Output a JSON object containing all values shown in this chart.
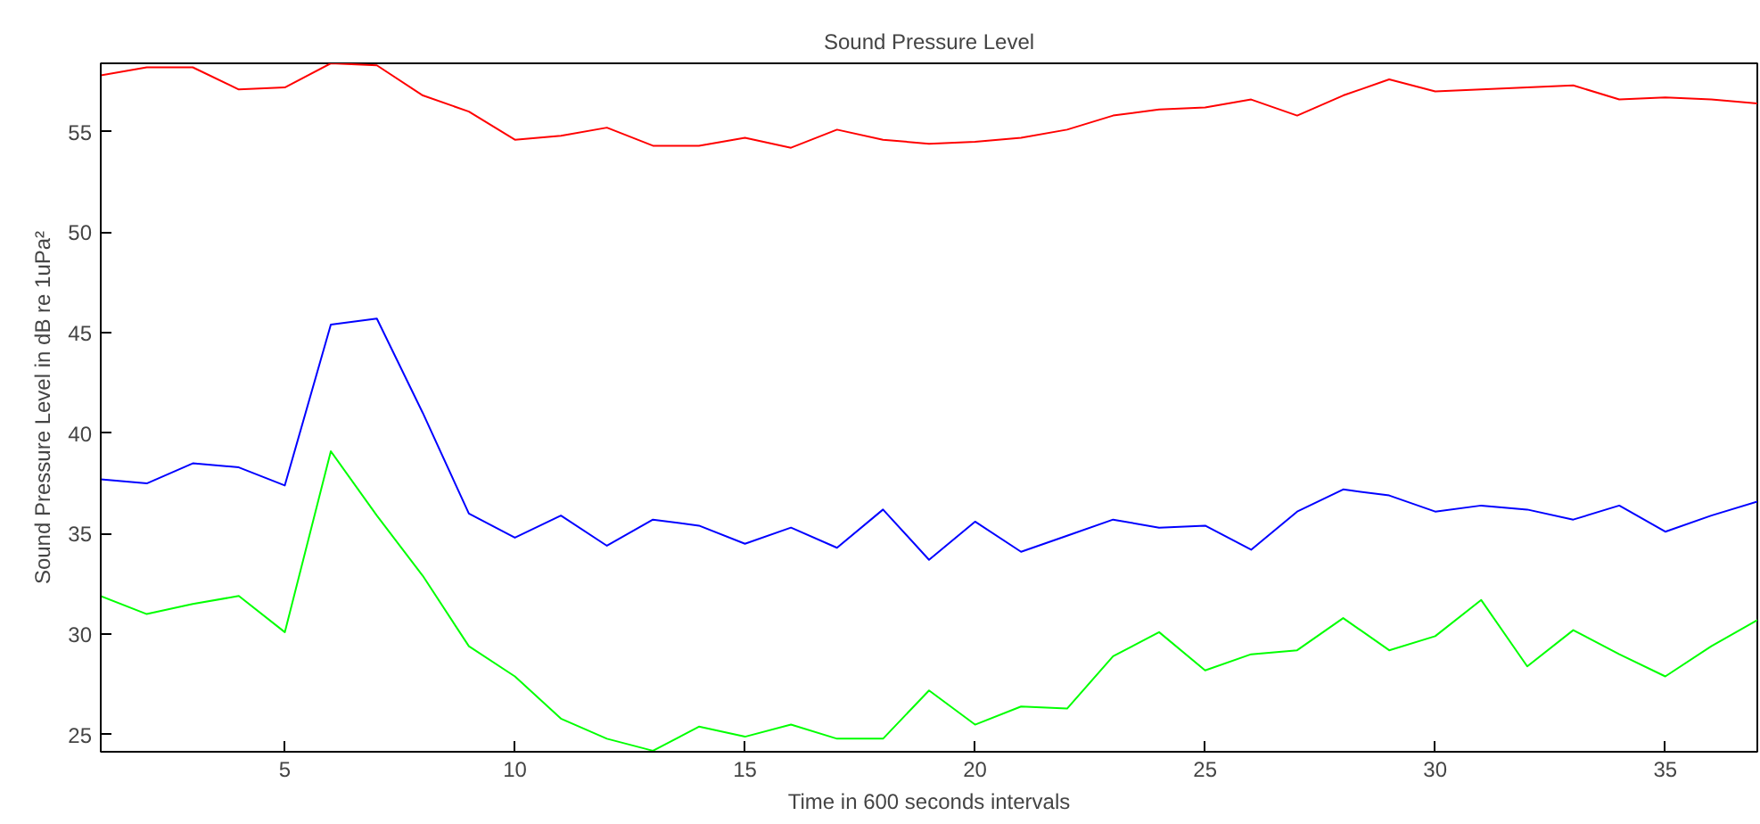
{
  "chart_data": {
    "type": "line",
    "title": "Sound Pressure Level",
    "xlabel": "Time in 600 seconds intervals",
    "ylabel": "Sound Pressure Level in dB re 1uPa²",
    "x": [
      1,
      2,
      3,
      4,
      5,
      6,
      7,
      8,
      9,
      10,
      11,
      12,
      13,
      14,
      15,
      16,
      17,
      18,
      19,
      20,
      21,
      22,
      23,
      24,
      25,
      26,
      27,
      28,
      29,
      30,
      31,
      32,
      33,
      34,
      35,
      36,
      37
    ],
    "series": [
      {
        "color": "#ff0000",
        "values": [
          57.8,
          58.2,
          58.2,
          57.1,
          57.2,
          58.4,
          58.3,
          56.8,
          56.0,
          54.6,
          54.8,
          55.2,
          54.3,
          54.3,
          54.7,
          54.2,
          55.1,
          54.6,
          54.4,
          54.5,
          54.7,
          55.1,
          55.8,
          56.1,
          56.2,
          56.6,
          55.8,
          56.8,
          57.6,
          57.0,
          57.1,
          57.2,
          57.3,
          56.6,
          56.7,
          56.6,
          56.4
        ]
      },
      {
        "color": "#0000ff",
        "values": [
          37.7,
          37.5,
          38.5,
          38.3,
          37.4,
          45.4,
          45.7,
          41.0,
          36.0,
          34.8,
          35.9,
          34.4,
          35.7,
          35.4,
          34.5,
          35.3,
          34.3,
          36.2,
          33.7,
          35.6,
          34.1,
          34.9,
          35.7,
          35.3,
          35.4,
          34.2,
          36.1,
          37.2,
          36.9,
          36.1,
          36.4,
          36.2,
          35.7,
          36.4,
          35.1,
          35.9,
          36.6
        ]
      },
      {
        "color": "#00ff00",
        "values": [
          31.9,
          31.0,
          31.5,
          31.9,
          30.1,
          39.1,
          35.9,
          32.9,
          29.4,
          27.9,
          25.8,
          24.8,
          24.2,
          25.4,
          24.9,
          25.5,
          24.8,
          24.8,
          27.2,
          25.5,
          26.4,
          26.3,
          28.9,
          30.1,
          28.2,
          29.0,
          29.2,
          30.8,
          29.2,
          29.9,
          31.7,
          28.4,
          30.2,
          29.0,
          27.9,
          29.4,
          30.7
        ]
      }
    ],
    "xlim": [
      1,
      37
    ],
    "ylim": [
      24.15,
      58.4
    ],
    "xticks": [
      5,
      10,
      15,
      20,
      25,
      30,
      35
    ],
    "yticks": [
      25,
      30,
      35,
      40,
      45,
      50,
      55
    ],
    "grid": false,
    "marker": "none",
    "line_style": "solid"
  }
}
